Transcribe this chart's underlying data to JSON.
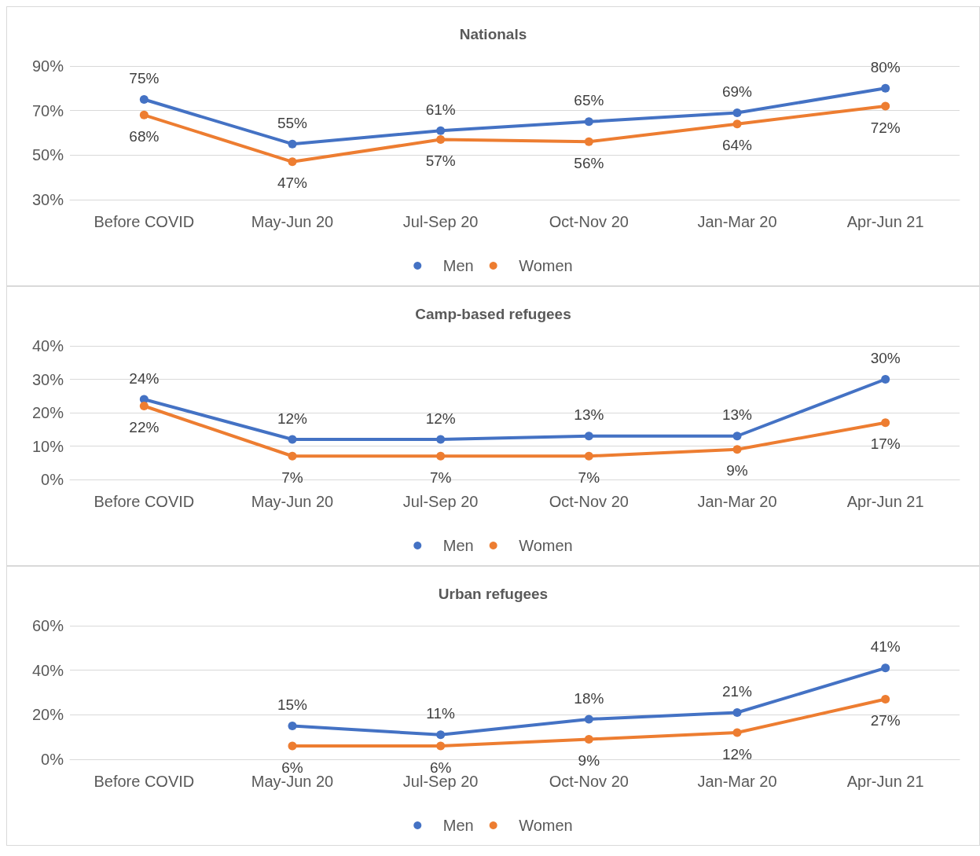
{
  "chart_data": [
    {
      "type": "line",
      "title": "Nationals",
      "categories": [
        "Before COVID",
        "May-Jun 20",
        "Jul-Sep 20",
        "Oct-Nov 20",
        "Jan-Mar 20",
        "Apr-Jun 21"
      ],
      "series": [
        {
          "name": "Men",
          "color": "#4472c4",
          "values": [
            75,
            55,
            61,
            65,
            69,
            80
          ],
          "value_labels": [
            "75%",
            "55%",
            "61%",
            "65%",
            "69%",
            "80%"
          ]
        },
        {
          "name": "Women",
          "color": "#ed7d31",
          "values": [
            68,
            47,
            57,
            56,
            64,
            72
          ],
          "value_labels": [
            "68%",
            "47%",
            "57%",
            "56%",
            "64%",
            "72%"
          ]
        }
      ],
      "ylim": [
        30,
        90
      ],
      "yticks": [
        {
          "value": 30,
          "label": "30%"
        },
        {
          "value": 50,
          "label": "50%"
        },
        {
          "value": 70,
          "label": "70%"
        },
        {
          "value": 90,
          "label": "90%"
        }
      ],
      "grid": "y",
      "legend": "bottom",
      "marker": "circle",
      "line_style": "solid"
    },
    {
      "type": "line",
      "title": "Camp-based refugees",
      "categories": [
        "Before COVID",
        "May-Jun 20",
        "Jul-Sep 20",
        "Oct-Nov 20",
        "Jan-Mar 20",
        "Apr-Jun 21"
      ],
      "series": [
        {
          "name": "Men",
          "color": "#4472c4",
          "values": [
            24,
            12,
            12,
            13,
            13,
            30
          ],
          "value_labels": [
            "24%",
            "12%",
            "12%",
            "13%",
            "13%",
            "30%"
          ]
        },
        {
          "name": "Women",
          "color": "#ed7d31",
          "values": [
            22,
            7,
            7,
            7,
            9,
            17
          ],
          "value_labels": [
            "22%",
            "7%",
            "7%",
            "7%",
            "9%",
            "17%"
          ]
        }
      ],
      "ylim": [
        0,
        40
      ],
      "yticks": [
        {
          "value": 0,
          "label": "0%"
        },
        {
          "value": 10,
          "label": "10%"
        },
        {
          "value": 20,
          "label": "20%"
        },
        {
          "value": 30,
          "label": "30%"
        },
        {
          "value": 40,
          "label": "40%"
        }
      ],
      "grid": "y",
      "legend": "bottom",
      "marker": "circle",
      "line_style": "solid"
    },
    {
      "type": "line",
      "title": "Urban refugees",
      "categories": [
        "Before COVID",
        "May-Jun 20",
        "Jul-Sep 20",
        "Oct-Nov 20",
        "Jan-Mar 20",
        "Apr-Jun 21"
      ],
      "series": [
        {
          "name": "Men",
          "color": "#4472c4",
          "values": [
            null,
            15,
            11,
            18,
            21,
            41
          ],
          "value_labels": [
            null,
            "15%",
            "11%",
            "18%",
            "21%",
            "41%"
          ]
        },
        {
          "name": "Women",
          "color": "#ed7d31",
          "values": [
            null,
            6,
            6,
            9,
            12,
            27
          ],
          "value_labels": [
            null,
            "6%",
            "6%",
            "9%",
            "12%",
            "27%"
          ]
        }
      ],
      "ylim": [
        0,
        60
      ],
      "yticks": [
        {
          "value": 0,
          "label": "0%"
        },
        {
          "value": 20,
          "label": "20%"
        },
        {
          "value": 40,
          "label": "40%"
        },
        {
          "value": 60,
          "label": "60%"
        }
      ],
      "grid": "y",
      "legend": "bottom",
      "marker": "circle",
      "line_style": "solid"
    }
  ]
}
